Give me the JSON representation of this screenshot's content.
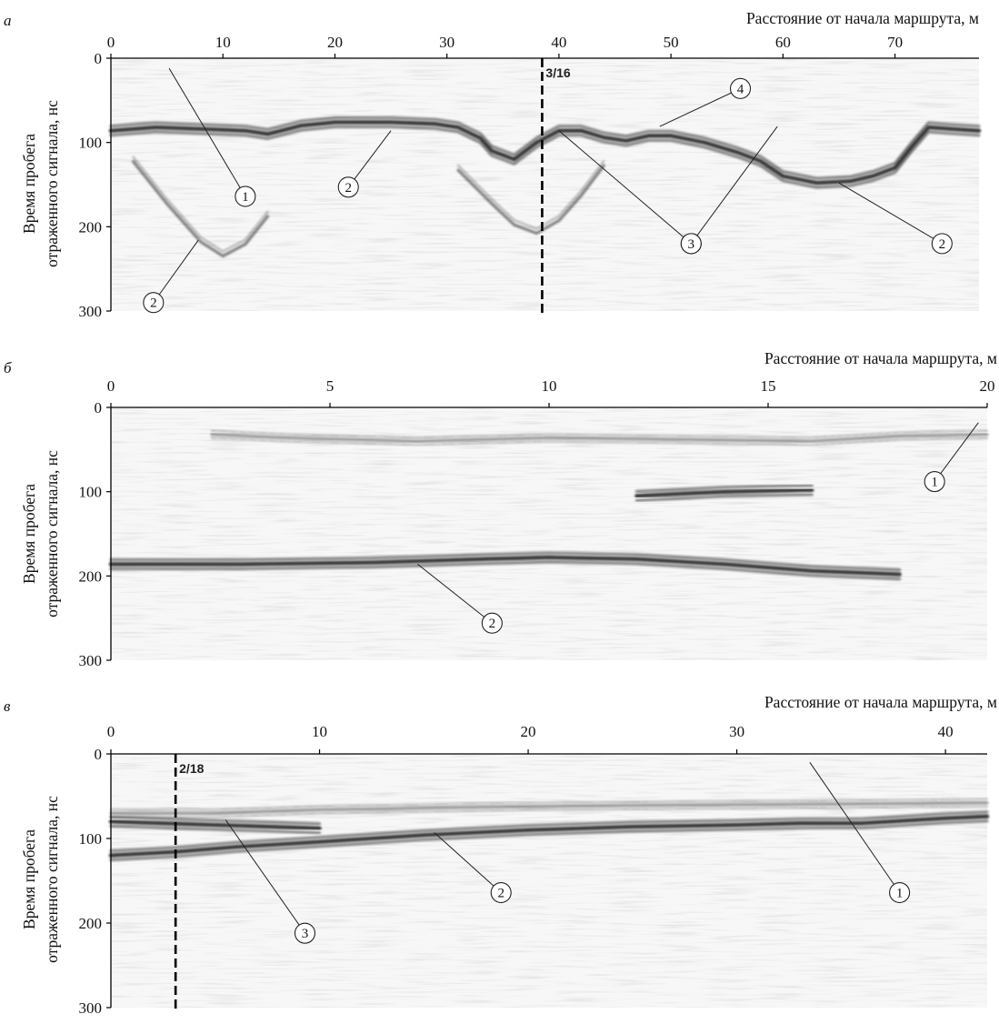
{
  "chart_data": [
    {
      "type": "heatmap",
      "panel_label": "а",
      "xlabel": "Расстояние от начала маршрута, м",
      "ylabel": [
        "Время пробега",
        "отраженного сигнала, нс"
      ],
      "xlim": [
        0,
        77.5
      ],
      "ylim": [
        0,
        300
      ],
      "x_ticks": [
        "0",
        "10",
        "20",
        "30",
        "40",
        "50",
        "60",
        "70"
      ],
      "y_ticks": [
        "0",
        "100",
        "200",
        "300"
      ],
      "marker": {
        "x": 38.5,
        "label": "3/16"
      },
      "callouts": [
        {
          "label": "1",
          "target": [
            5.2,
            12
          ],
          "at": [
            12.0,
            164
          ]
        },
        {
          "label": "2",
          "target": [
            25.0,
            86
          ],
          "at": [
            21.2,
            153
          ]
        },
        {
          "label": "2",
          "target": [
            7.8,
            216
          ],
          "at": [
            3.8,
            290
          ]
        },
        {
          "label": "3",
          "target": [
            40.0,
            86
          ],
          "at": [
            51.8,
            220
          ]
        },
        {
          "label": "3",
          "target": [
            59.5,
            81
          ],
          "at": [
            51.8,
            220
          ]
        },
        {
          "label": "4",
          "target": [
            49.0,
            81
          ],
          "at": [
            56.2,
            36
          ]
        },
        {
          "label": "2",
          "target": [
            65.0,
            148
          ],
          "at": [
            74.2,
            220
          ]
        }
      ],
      "reflectors": [
        {
          "name": "surface",
          "x": [
            0,
            77.5
          ],
          "y": [
            12,
            12
          ]
        },
        {
          "name": "band",
          "x": [
            0,
            77.5
          ],
          "y": [
            28,
            28
          ]
        },
        {
          "name": "band",
          "x": [
            0,
            77.5
          ],
          "y": [
            42,
            42
          ]
        },
        {
          "name": "band",
          "x": [
            0,
            77.5
          ],
          "y": [
            55,
            55
          ]
        },
        {
          "name": "layer",
          "x": [
            0,
            4,
            8,
            12,
            14,
            17,
            20,
            25,
            29,
            31,
            33,
            34,
            36,
            38,
            40,
            42,
            44,
            46,
            48,
            50,
            53,
            56,
            58,
            60,
            63,
            66,
            68,
            70,
            71.5,
            73,
            75,
            77.5
          ],
          "y": [
            86,
            82,
            84,
            86,
            90,
            80,
            76,
            76,
            78,
            82,
            95,
            110,
            120,
            100,
            86,
            86,
            94,
            98,
            92,
            92,
            100,
            112,
            122,
            140,
            148,
            146,
            140,
            130,
            105,
            82,
            84,
            86
          ]
        },
        {
          "name": "hyperbola",
          "x": [
            2,
            5,
            8,
            10,
            12,
            14
          ],
          "y": [
            120,
            170,
            215,
            232,
            218,
            185
          ]
        },
        {
          "name": "hyperbola",
          "x": [
            31,
            34,
            36,
            38,
            40,
            42,
            44
          ],
          "y": [
            130,
            170,
            195,
            205,
            190,
            160,
            125
          ]
        }
      ]
    },
    {
      "type": "heatmap",
      "panel_label": "б",
      "xlabel": "Расстояние от начала маршрута, м",
      "ylabel": [
        "Время пробега",
        "отраженного сигнала, нс"
      ],
      "xlim": [
        0,
        20
      ],
      "ylim": [
        0,
        300
      ],
      "x_ticks": [
        "0",
        "5",
        "10",
        "15",
        "20"
      ],
      "y_ticks": [
        "0",
        "100",
        "200",
        "300"
      ],
      "callouts": [
        {
          "label": "1",
          "target": [
            19.8,
            18
          ],
          "at": [
            18.8,
            88
          ]
        },
        {
          "label": "2",
          "target": [
            7.0,
            186
          ],
          "at": [
            8.7,
            256
          ]
        }
      ],
      "reflectors": [
        {
          "name": "surface",
          "x": [
            0,
            20
          ],
          "y": [
            18,
            18
          ]
        },
        {
          "name": "band",
          "x": [
            0,
            20
          ],
          "y": [
            24,
            24
          ]
        },
        {
          "name": "band",
          "x": [
            2.3,
            4,
            7,
            10,
            13,
            16,
            18,
            20
          ],
          "y": [
            32,
            36,
            40,
            36,
            38,
            40,
            34,
            32
          ]
        },
        {
          "name": "band",
          "x": [
            0,
            20
          ],
          "y": [
            48,
            48
          ]
        },
        {
          "name": "layer",
          "x": [
            0,
            3,
            6,
            8.5,
            10,
            12,
            14,
            16,
            18
          ],
          "y": [
            186,
            186,
            184,
            180,
            178,
            180,
            186,
            194,
            198
          ]
        },
        {
          "name": "layer",
          "x": [
            12,
            14,
            16
          ],
          "y": [
            105,
            100,
            98
          ]
        },
        {
          "name": "layer",
          "x": [
            18.5,
            20
          ],
          "y": [
            108,
            108
          ]
        }
      ]
    },
    {
      "type": "heatmap",
      "panel_label": "в",
      "xlabel": "Расстояние от начала маршрута, м",
      "ylabel": [
        "Время пробега",
        "отраженного сигнала, нс"
      ],
      "xlim": [
        0,
        42
      ],
      "ylim": [
        0,
        300
      ],
      "x_ticks": [
        "0",
        "10",
        "20",
        "30",
        "40"
      ],
      "y_ticks": [
        "0",
        "100",
        "200",
        "300"
      ],
      "marker": {
        "x": 3.1,
        "label": "2/18"
      },
      "callouts": [
        {
          "label": "1",
          "target": [
            33.5,
            10
          ],
          "at": [
            37.8,
            164
          ]
        },
        {
          "label": "2",
          "target": [
            15.5,
            93
          ],
          "at": [
            18.7,
            164
          ]
        },
        {
          "label": "3",
          "target": [
            5.5,
            78
          ],
          "at": [
            9.3,
            212
          ]
        }
      ],
      "reflectors": [
        {
          "name": "surface",
          "x": [
            0,
            42
          ],
          "y": [
            12,
            12
          ]
        },
        {
          "name": "band",
          "x": [
            0,
            42
          ],
          "y": [
            24,
            24
          ]
        },
        {
          "name": "band",
          "x": [
            0,
            42
          ],
          "y": [
            34,
            34
          ]
        },
        {
          "name": "band",
          "x": [
            0,
            5,
            10,
            20,
            30,
            42
          ],
          "y": [
            70,
            70,
            66,
            62,
            60,
            58
          ]
        },
        {
          "name": "layer",
          "x": [
            0,
            3,
            6,
            10,
            15,
            20,
            25,
            30,
            33,
            36,
            40,
            42
          ],
          "y": [
            120,
            116,
            110,
            104,
            96,
            90,
            86,
            84,
            82,
            82,
            76,
            74
          ]
        },
        {
          "name": "layer",
          "x": [
            0,
            5,
            10
          ],
          "y": [
            80,
            84,
            88
          ]
        }
      ]
    }
  ],
  "colors": {
    "background": "#f7f7f7",
    "reflection": "#1a1a1a",
    "axis": "#000000"
  }
}
